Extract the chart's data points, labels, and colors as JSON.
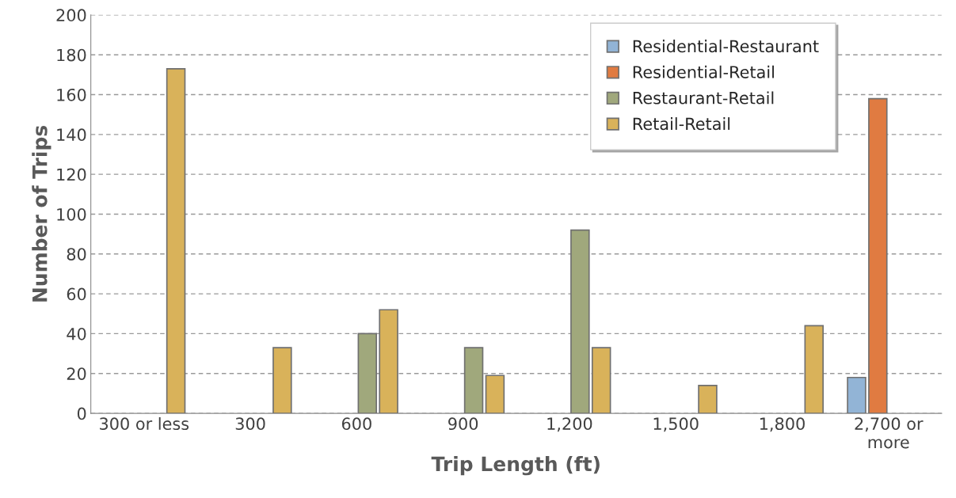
{
  "chart_data": {
    "type": "bar",
    "xlabel": "Trip Length (ft)",
    "ylabel": "Number of Trips",
    "categories": [
      "300 or less",
      "300",
      "600",
      "900",
      "1,200",
      "1,500",
      "1,800",
      "2,700 or\nmore"
    ],
    "series": [
      {
        "name": "Residential-Restaurant",
        "color": "#92b4d6",
        "values": [
          null,
          null,
          null,
          null,
          null,
          null,
          null,
          18
        ]
      },
      {
        "name": "Residential-Retail",
        "color": "#e07b41",
        "values": [
          null,
          null,
          null,
          null,
          null,
          null,
          null,
          158
        ]
      },
      {
        "name": "Restaurant-Retail",
        "color": "#a0a87c",
        "values": [
          null,
          null,
          40,
          33,
          92,
          null,
          null,
          null
        ]
      },
      {
        "name": "Retail-Retail",
        "color": "#d9b25a",
        "values": [
          173,
          33,
          52,
          19,
          33,
          14,
          44,
          null
        ]
      }
    ],
    "ylim": [
      0,
      200
    ],
    "yticks": [
      0,
      20,
      40,
      60,
      80,
      100,
      120,
      140,
      160,
      180,
      200
    ],
    "grid": "y",
    "legend": "top right"
  }
}
